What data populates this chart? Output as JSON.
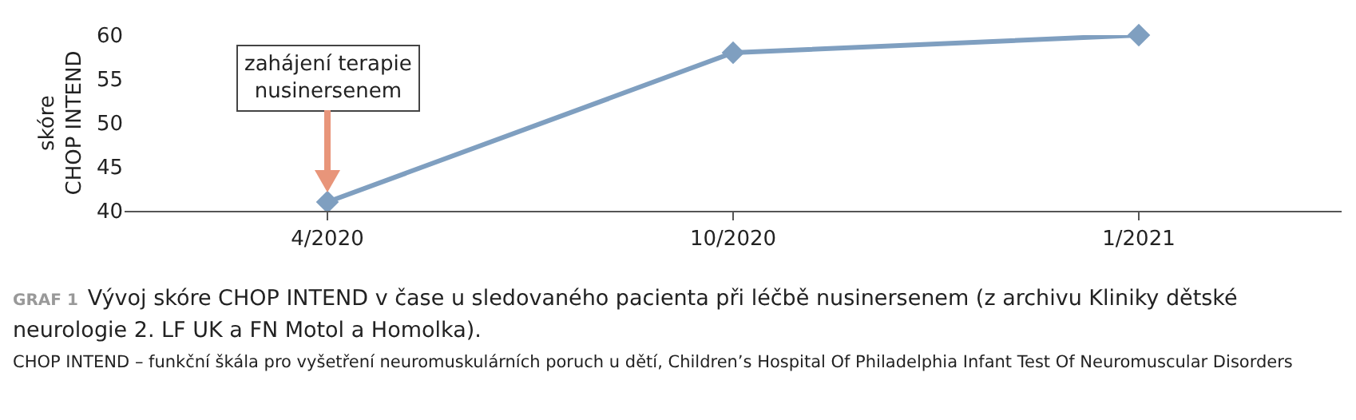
{
  "chart_data": {
    "type": "line",
    "title": "GRAF 1",
    "subtitle": "Vývoj skóre CHOP INTEND v čase u sledovaného pacienta při léčbě nusinersenem (z archivu Kliniky dětské neurologie 2. LF UK a FN Motol a Homolka).",
    "ylabel": "skóre\nCHOP INTEND",
    "categories": [
      "4/2020",
      "10/2020",
      "1/2021"
    ],
    "series": [
      {
        "color": "#7f9fc0",
        "values": [
          41,
          58,
          60
        ]
      }
    ],
    "ylim": [
      40,
      60
    ],
    "yticks": [
      40,
      45,
      50,
      55,
      60
    ],
    "grid": false,
    "marker": "diamond",
    "line_style": "solid",
    "annotations": [
      {
        "text": "zahájení terapie\nnusinersenem",
        "x": "4/2020",
        "y": 41
      },
      "CHOP INTEND – funkční škála pro vyšetření neuromuskulárních poruch u dětí, Children’s Hospital Of Philadelphia Infant Test Of Neuromuscular Disorders"
    ]
  }
}
